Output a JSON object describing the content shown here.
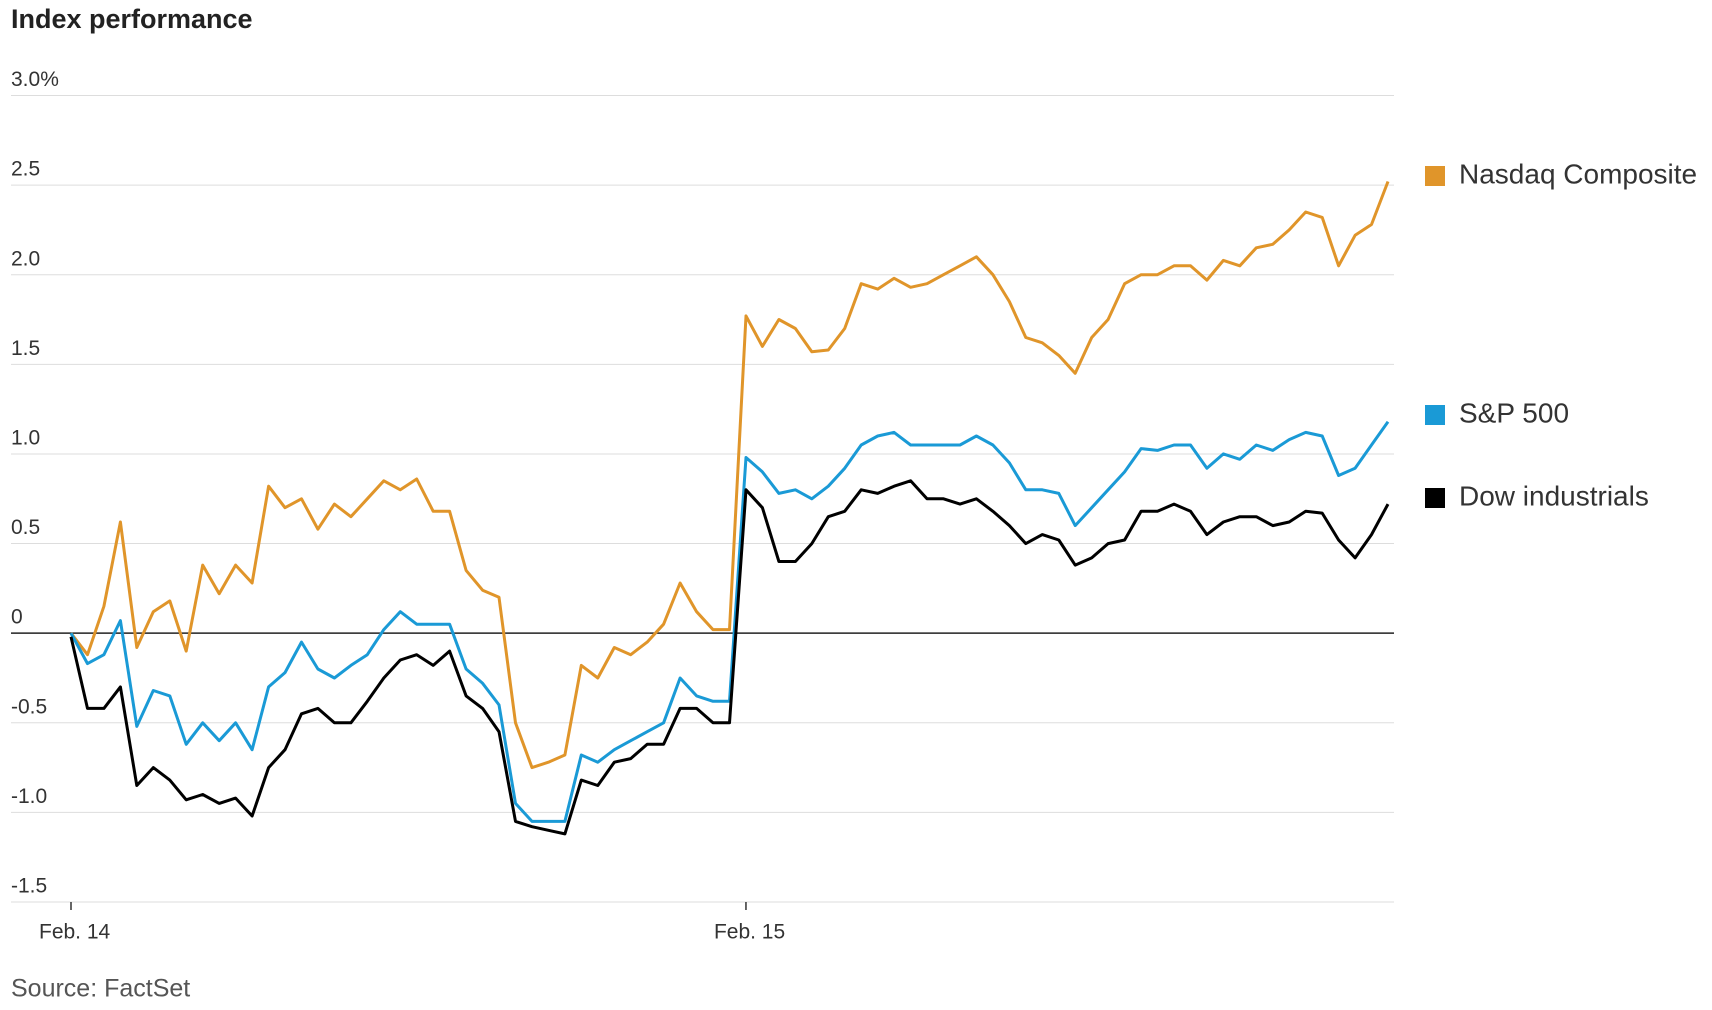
{
  "chart_data": {
    "type": "line",
    "title": "Index performance",
    "source": "Source: FactSet",
    "categories": [
      "Feb. 14",
      null,
      null,
      null,
      null,
      null,
      null,
      null,
      null,
      null,
      null,
      null,
      null,
      null,
      null,
      null,
      null,
      null,
      null,
      null,
      null,
      null,
      null,
      null,
      null,
      null,
      null,
      null,
      null,
      null,
      null,
      null,
      null,
      null,
      null,
      null,
      null,
      null,
      null,
      null,
      null,
      "Feb. 15",
      null,
      null,
      null,
      null,
      null,
      null,
      null,
      null,
      null,
      null,
      null,
      null,
      null,
      null,
      null,
      null,
      null,
      null,
      null,
      null,
      null,
      null,
      null,
      null,
      null,
      null,
      null,
      null,
      null,
      null,
      null,
      null,
      null,
      null,
      null,
      null,
      null,
      null,
      null
    ],
    "series": [
      {
        "name": "Nasdaq Composite",
        "color": "#e0952a",
        "values": [
          0.0,
          -0.12,
          0.15,
          0.62,
          -0.08,
          0.12,
          0.18,
          -0.1,
          0.38,
          0.22,
          0.38,
          0.28,
          0.82,
          0.7,
          0.75,
          0.58,
          0.72,
          0.65,
          0.75,
          0.85,
          0.8,
          0.86,
          0.68,
          0.68,
          0.35,
          0.24,
          0.2,
          -0.5,
          -0.75,
          -0.72,
          -0.68,
          -0.18,
          -0.25,
          -0.08,
          -0.12,
          -0.05,
          0.05,
          0.28,
          0.12,
          0.02,
          0.02,
          1.77,
          1.6,
          1.75,
          1.7,
          1.57,
          1.58,
          1.7,
          1.95,
          1.92,
          1.98,
          1.93,
          1.95,
          2.0,
          2.05,
          2.1,
          2.0,
          1.85,
          1.65,
          1.62,
          1.55,
          1.45,
          1.65,
          1.75,
          1.95,
          2.0,
          2.0,
          2.05,
          2.05,
          1.97,
          2.08,
          2.05,
          2.15,
          2.17,
          2.25,
          2.35,
          2.32,
          2.05,
          2.22,
          2.28,
          2.52
        ]
      },
      {
        "name": "S&P 500",
        "color": "#1a9ad6",
        "values": [
          0.0,
          -0.17,
          -0.12,
          0.07,
          -0.52,
          -0.32,
          -0.35,
          -0.62,
          -0.5,
          -0.6,
          -0.5,
          -0.65,
          -0.3,
          -0.22,
          -0.05,
          -0.2,
          -0.25,
          -0.18,
          -0.12,
          0.02,
          0.12,
          0.05,
          0.05,
          0.05,
          -0.2,
          -0.28,
          -0.4,
          -0.95,
          -1.05,
          -1.05,
          -1.05,
          -0.68,
          -0.72,
          -0.65,
          -0.6,
          -0.55,
          -0.5,
          -0.25,
          -0.35,
          -0.38,
          -0.38,
          0.98,
          0.9,
          0.78,
          0.8,
          0.75,
          0.82,
          0.92,
          1.05,
          1.1,
          1.12,
          1.05,
          1.05,
          1.05,
          1.05,
          1.1,
          1.05,
          0.95,
          0.8,
          0.8,
          0.78,
          0.6,
          0.7,
          0.8,
          0.9,
          1.03,
          1.02,
          1.05,
          1.05,
          0.92,
          1.0,
          0.97,
          1.05,
          1.02,
          1.08,
          1.12,
          1.1,
          0.88,
          0.92,
          1.05,
          1.18
        ]
      },
      {
        "name": "Dow industrials",
        "color": "#000000",
        "values": [
          -0.02,
          -0.42,
          -0.42,
          -0.3,
          -0.85,
          -0.75,
          -0.82,
          -0.93,
          -0.9,
          -0.95,
          -0.92,
          -1.02,
          -0.75,
          -0.65,
          -0.45,
          -0.42,
          -0.5,
          -0.5,
          -0.38,
          -0.25,
          -0.15,
          -0.12,
          -0.18,
          -0.1,
          -0.35,
          -0.42,
          -0.55,
          -1.05,
          -1.08,
          -1.1,
          -1.12,
          -0.82,
          -0.85,
          -0.72,
          -0.7,
          -0.62,
          -0.62,
          -0.42,
          -0.42,
          -0.5,
          -0.5,
          0.8,
          0.7,
          0.4,
          0.4,
          0.5,
          0.65,
          0.68,
          0.8,
          0.78,
          0.82,
          0.85,
          0.75,
          0.75,
          0.72,
          0.75,
          0.68,
          0.6,
          0.5,
          0.55,
          0.52,
          0.38,
          0.42,
          0.5,
          0.52,
          0.68,
          0.68,
          0.72,
          0.68,
          0.55,
          0.62,
          0.65,
          0.65,
          0.6,
          0.62,
          0.68,
          0.67,
          0.52,
          0.42,
          0.55,
          0.72
        ]
      }
    ],
    "ylim": [
      -1.5,
      3.0
    ],
    "yticks": [
      {
        "value": 3,
        "label": "3.0%"
      },
      2.5,
      {
        "value": 2,
        "label": "2.0"
      },
      1.5,
      {
        "value": 1,
        "label": "1.0"
      },
      0.5,
      0,
      -0.5,
      {
        "value": -1,
        "label": "-1.0"
      },
      -1.5
    ],
    "grid": true
  }
}
